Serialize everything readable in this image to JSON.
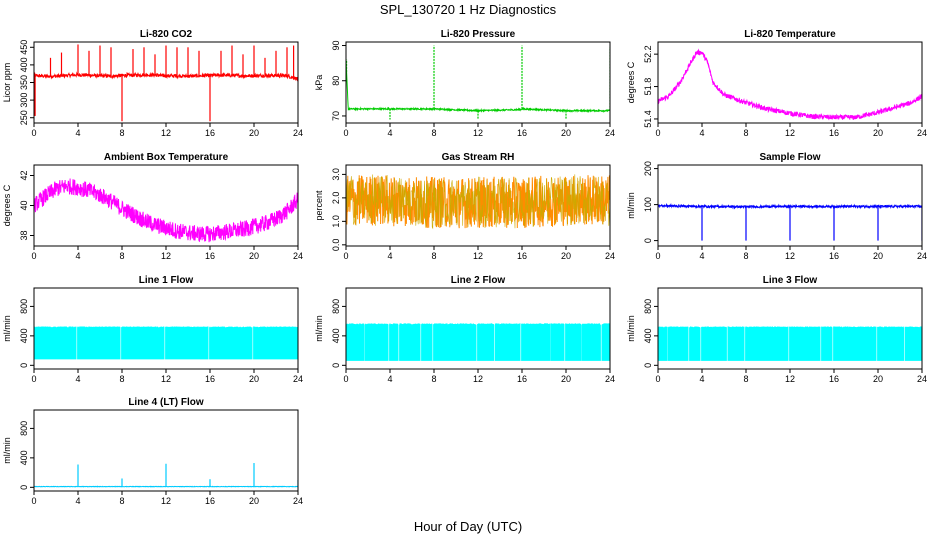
{
  "figure": {
    "title": "SPL_130720  1 Hz Diagnostics",
    "xlabel": "Hour of Day (UTC)"
  },
  "chart_data": [
    {
      "type": "line",
      "title": "Li-820 CO2",
      "ylabel": "Licor ppm",
      "color": "#ff0000",
      "xlim": [
        0,
        24
      ],
      "ylim": [
        235,
        465
      ],
      "yticks": [
        "250",
        "300",
        "350",
        "400",
        "450"
      ],
      "xticks": [
        "0",
        "4",
        "8",
        "12",
        "16",
        "20",
        "24"
      ],
      "x": [
        0,
        1,
        2,
        3,
        4,
        5,
        6,
        7,
        8,
        9,
        10,
        11,
        12,
        13,
        14,
        15,
        16,
        17,
        18,
        19,
        20,
        21,
        22,
        23,
        24
      ],
      "y": [
        370,
        368,
        368,
        370,
        372,
        371,
        369,
        368,
        370,
        371,
        372,
        371,
        369,
        369,
        368,
        369,
        370,
        371,
        370,
        369,
        369,
        370,
        370,
        369,
        360
      ],
      "spikes": [
        {
          "x": 0.1,
          "y": 255
        },
        {
          "x": 1.5,
          "y": 420
        },
        {
          "x": 2.5,
          "y": 435
        },
        {
          "x": 4.0,
          "y": 458
        },
        {
          "x": 5.0,
          "y": 440
        },
        {
          "x": 6.0,
          "y": 455
        },
        {
          "x": 7.0,
          "y": 450
        },
        {
          "x": 8.0,
          "y": 240
        },
        {
          "x": 9.0,
          "y": 445
        },
        {
          "x": 10.0,
          "y": 450
        },
        {
          "x": 11.0,
          "y": 430
        },
        {
          "x": 12.0,
          "y": 455
        },
        {
          "x": 13.0,
          "y": 450
        },
        {
          "x": 14.0,
          "y": 450
        },
        {
          "x": 15.0,
          "y": 440
        },
        {
          "x": 16.0,
          "y": 240
        },
        {
          "x": 17.0,
          "y": 440
        },
        {
          "x": 18.0,
          "y": 455
        },
        {
          "x": 19.0,
          "y": 430
        },
        {
          "x": 20.0,
          "y": 455
        },
        {
          "x": 21.0,
          "y": 420
        },
        {
          "x": 22.0,
          "y": 440
        },
        {
          "x": 23.0,
          "y": 450
        },
        {
          "x": 23.6,
          "y": 455
        }
      ],
      "noise": 5
    },
    {
      "type": "line",
      "title": "Li-820 Pressure",
      "ylabel": "kPa",
      "color": "#00cc00",
      "xlim": [
        0,
        24
      ],
      "ylim": [
        68,
        91
      ],
      "yticks": [
        "70",
        "80",
        "90"
      ],
      "xticks": [
        "0",
        "4",
        "8",
        "12",
        "16",
        "20",
        "24"
      ],
      "x": [
        0,
        0.2,
        1,
        4,
        8,
        12,
        15.9,
        16,
        20,
        24
      ],
      "y": [
        86,
        72,
        72,
        72,
        72,
        71.5,
        71.8,
        72,
        71.5,
        71.5
      ],
      "spikes": [
        {
          "x": 0.05,
          "y": 86
        },
        {
          "x": 4.0,
          "y": 69
        },
        {
          "x": 8.0,
          "y": 90
        },
        {
          "x": 12.0,
          "y": 69
        },
        {
          "x": 16.0,
          "y": 90
        },
        {
          "x": 20.0,
          "y": 69
        },
        {
          "x": 24.0,
          "y": 89.5
        }
      ],
      "noise": 0.2
    },
    {
      "type": "line",
      "title": "Li-820 Temperature",
      "ylabel": "degrees C",
      "color": "#ff00ff",
      "xlim": [
        0,
        24
      ],
      "ylim": [
        51.35,
        52.35
      ],
      "yticks": [
        "51.4",
        "51.8",
        "52.2"
      ],
      "xticks": [
        "0",
        "4",
        "8",
        "12",
        "16",
        "20",
        "24"
      ],
      "x": [
        0,
        1,
        2,
        3,
        3.5,
        4,
        4.5,
        5,
        6,
        7,
        8,
        10,
        12,
        14,
        16,
        18,
        19,
        20,
        21,
        22,
        23,
        24
      ],
      "y": [
        51.62,
        51.68,
        51.85,
        52.1,
        52.22,
        52.22,
        52.1,
        51.85,
        51.7,
        51.65,
        51.6,
        51.52,
        51.47,
        51.43,
        51.42,
        51.42,
        51.45,
        51.48,
        51.52,
        51.56,
        51.6,
        51.68
      ],
      "noise": 0.03
    },
    {
      "type": "line",
      "title": "Ambient Box Temperature",
      "ylabel": "degrees C",
      "color": "#ff00ff",
      "xlim": [
        0,
        24
      ],
      "ylim": [
        37.3,
        42.7
      ],
      "yticks": [
        "38",
        "40",
        "42"
      ],
      "xticks": [
        "0",
        "4",
        "8",
        "12",
        "16",
        "20",
        "24"
      ],
      "x": [
        0,
        1,
        2,
        3,
        4,
        5,
        6,
        7,
        8,
        9,
        10,
        11,
        12,
        13,
        14,
        15,
        16,
        17,
        18,
        19,
        20,
        21,
        22,
        23,
        24
      ],
      "y": [
        40.0,
        40.6,
        41.1,
        41.3,
        41.2,
        41.0,
        40.7,
        40.3,
        39.8,
        39.4,
        39.0,
        38.7,
        38.5,
        38.3,
        38.2,
        38.1,
        38.1,
        38.2,
        38.3,
        38.4,
        38.6,
        38.8,
        39.1,
        39.6,
        40.4
      ],
      "noise": 0.55
    },
    {
      "type": "line",
      "title": "Gas Stream RH",
      "ylabel": "percent",
      "color": "#ff8c00",
      "color2": "#ccaa00",
      "xlim": [
        0,
        24
      ],
      "ylim": [
        -0.05,
        3.4
      ],
      "yticks": [
        "0.0",
        "1.0",
        "2.0",
        "3.0"
      ],
      "xticks": [
        "0",
        "4",
        "8",
        "12",
        "16",
        "20",
        "24"
      ],
      "x": [
        0,
        4,
        8,
        12,
        16,
        20,
        24
      ],
      "y": [
        1.9,
        1.9,
        1.8,
        1.8,
        1.8,
        1.9,
        1.9
      ],
      "noise": 1.1
    },
    {
      "type": "line",
      "title": "Sample Flow",
      "ylabel": "ml/min",
      "color": "#0000ff",
      "xlim": [
        0,
        24
      ],
      "ylim": [
        -15,
        210
      ],
      "yticks": [
        "0",
        "100",
        "200"
      ],
      "xticks": [
        "0",
        "4",
        "8",
        "12",
        "16",
        "20",
        "24"
      ],
      "x": [
        0,
        4,
        8,
        12,
        16,
        20,
        24
      ],
      "y": [
        97,
        95,
        94,
        95,
        95,
        95,
        95
      ],
      "spikes": [
        {
          "x": 4.0,
          "y": 0
        },
        {
          "x": 8.0,
          "y": 0
        },
        {
          "x": 12.0,
          "y": 0
        },
        {
          "x": 16.0,
          "y": 0
        },
        {
          "x": 20.0,
          "y": 0
        },
        {
          "x": 24.0,
          "y": 0
        }
      ],
      "noise": 3
    },
    {
      "type": "area",
      "title": "Line 1 Flow",
      "ylabel": "ml/min",
      "color": "#00ffff",
      "xlim": [
        0,
        24
      ],
      "ylim": [
        -50,
        1050
      ],
      "yticks": [
        "0",
        "400",
        "800"
      ],
      "xticks": [
        "0",
        "4",
        "8",
        "12",
        "16",
        "20",
        "24"
      ],
      "x": [
        0,
        24
      ],
      "y": [
        520,
        520
      ],
      "low": 80,
      "gaps": [
        3.9,
        7.9,
        11.9,
        15.9,
        19.9
      ],
      "noise": 15
    },
    {
      "type": "area",
      "title": "Line 2 Flow",
      "ylabel": "ml/min",
      "color": "#00ffff",
      "xlim": [
        0,
        24
      ],
      "ylim": [
        -50,
        1050
      ],
      "yticks": [
        "0",
        "400",
        "800"
      ],
      "xticks": [
        "0",
        "4",
        "8",
        "12",
        "16",
        "20",
        "24"
      ],
      "x": [
        0,
        24
      ],
      "y": [
        560,
        560
      ],
      "low": 60,
      "gaps": [
        1.7,
        3.9,
        4.8,
        6.8,
        7.9,
        11.9,
        13.5,
        15.9,
        18.6,
        19.9,
        21.4,
        23.2
      ],
      "noise": 20
    },
    {
      "type": "area",
      "title": "Line 3 Flow",
      "ylabel": "ml/min",
      "color": "#00ffff",
      "xlim": [
        0,
        24
      ],
      "ylim": [
        -50,
        1050
      ],
      "yticks": [
        "0",
        "400",
        "800"
      ],
      "xticks": [
        "0",
        "4",
        "8",
        "12",
        "16",
        "20",
        "24"
      ],
      "x": [
        0,
        24
      ],
      "y": [
        520,
        520
      ],
      "low": 60,
      "gaps": [
        0.9,
        2.8,
        3.9,
        6.3,
        7.9,
        11.9,
        14.8,
        15.9,
        19.9,
        22.4
      ],
      "noise": 15
    },
    {
      "type": "line",
      "title": "Line 4 (LT) Flow",
      "ylabel": "ml/min",
      "color": "#00ccff",
      "xlim": [
        0,
        24
      ],
      "ylim": [
        -50,
        1050
      ],
      "yticks": [
        "0",
        "400",
        "800"
      ],
      "xticks": [
        "0",
        "4",
        "8",
        "12",
        "16",
        "20",
        "24"
      ],
      "x": [
        0,
        24
      ],
      "y": [
        10,
        10
      ],
      "spikes": [
        {
          "x": 4.0,
          "y": 310
        },
        {
          "x": 8.0,
          "y": 120
        },
        {
          "x": 12.0,
          "y": 320
        },
        {
          "x": 16.0,
          "y": 110
        },
        {
          "x": 20.0,
          "y": 330
        },
        {
          "x": 24.0,
          "y": 100
        }
      ],
      "noise": 3
    }
  ]
}
